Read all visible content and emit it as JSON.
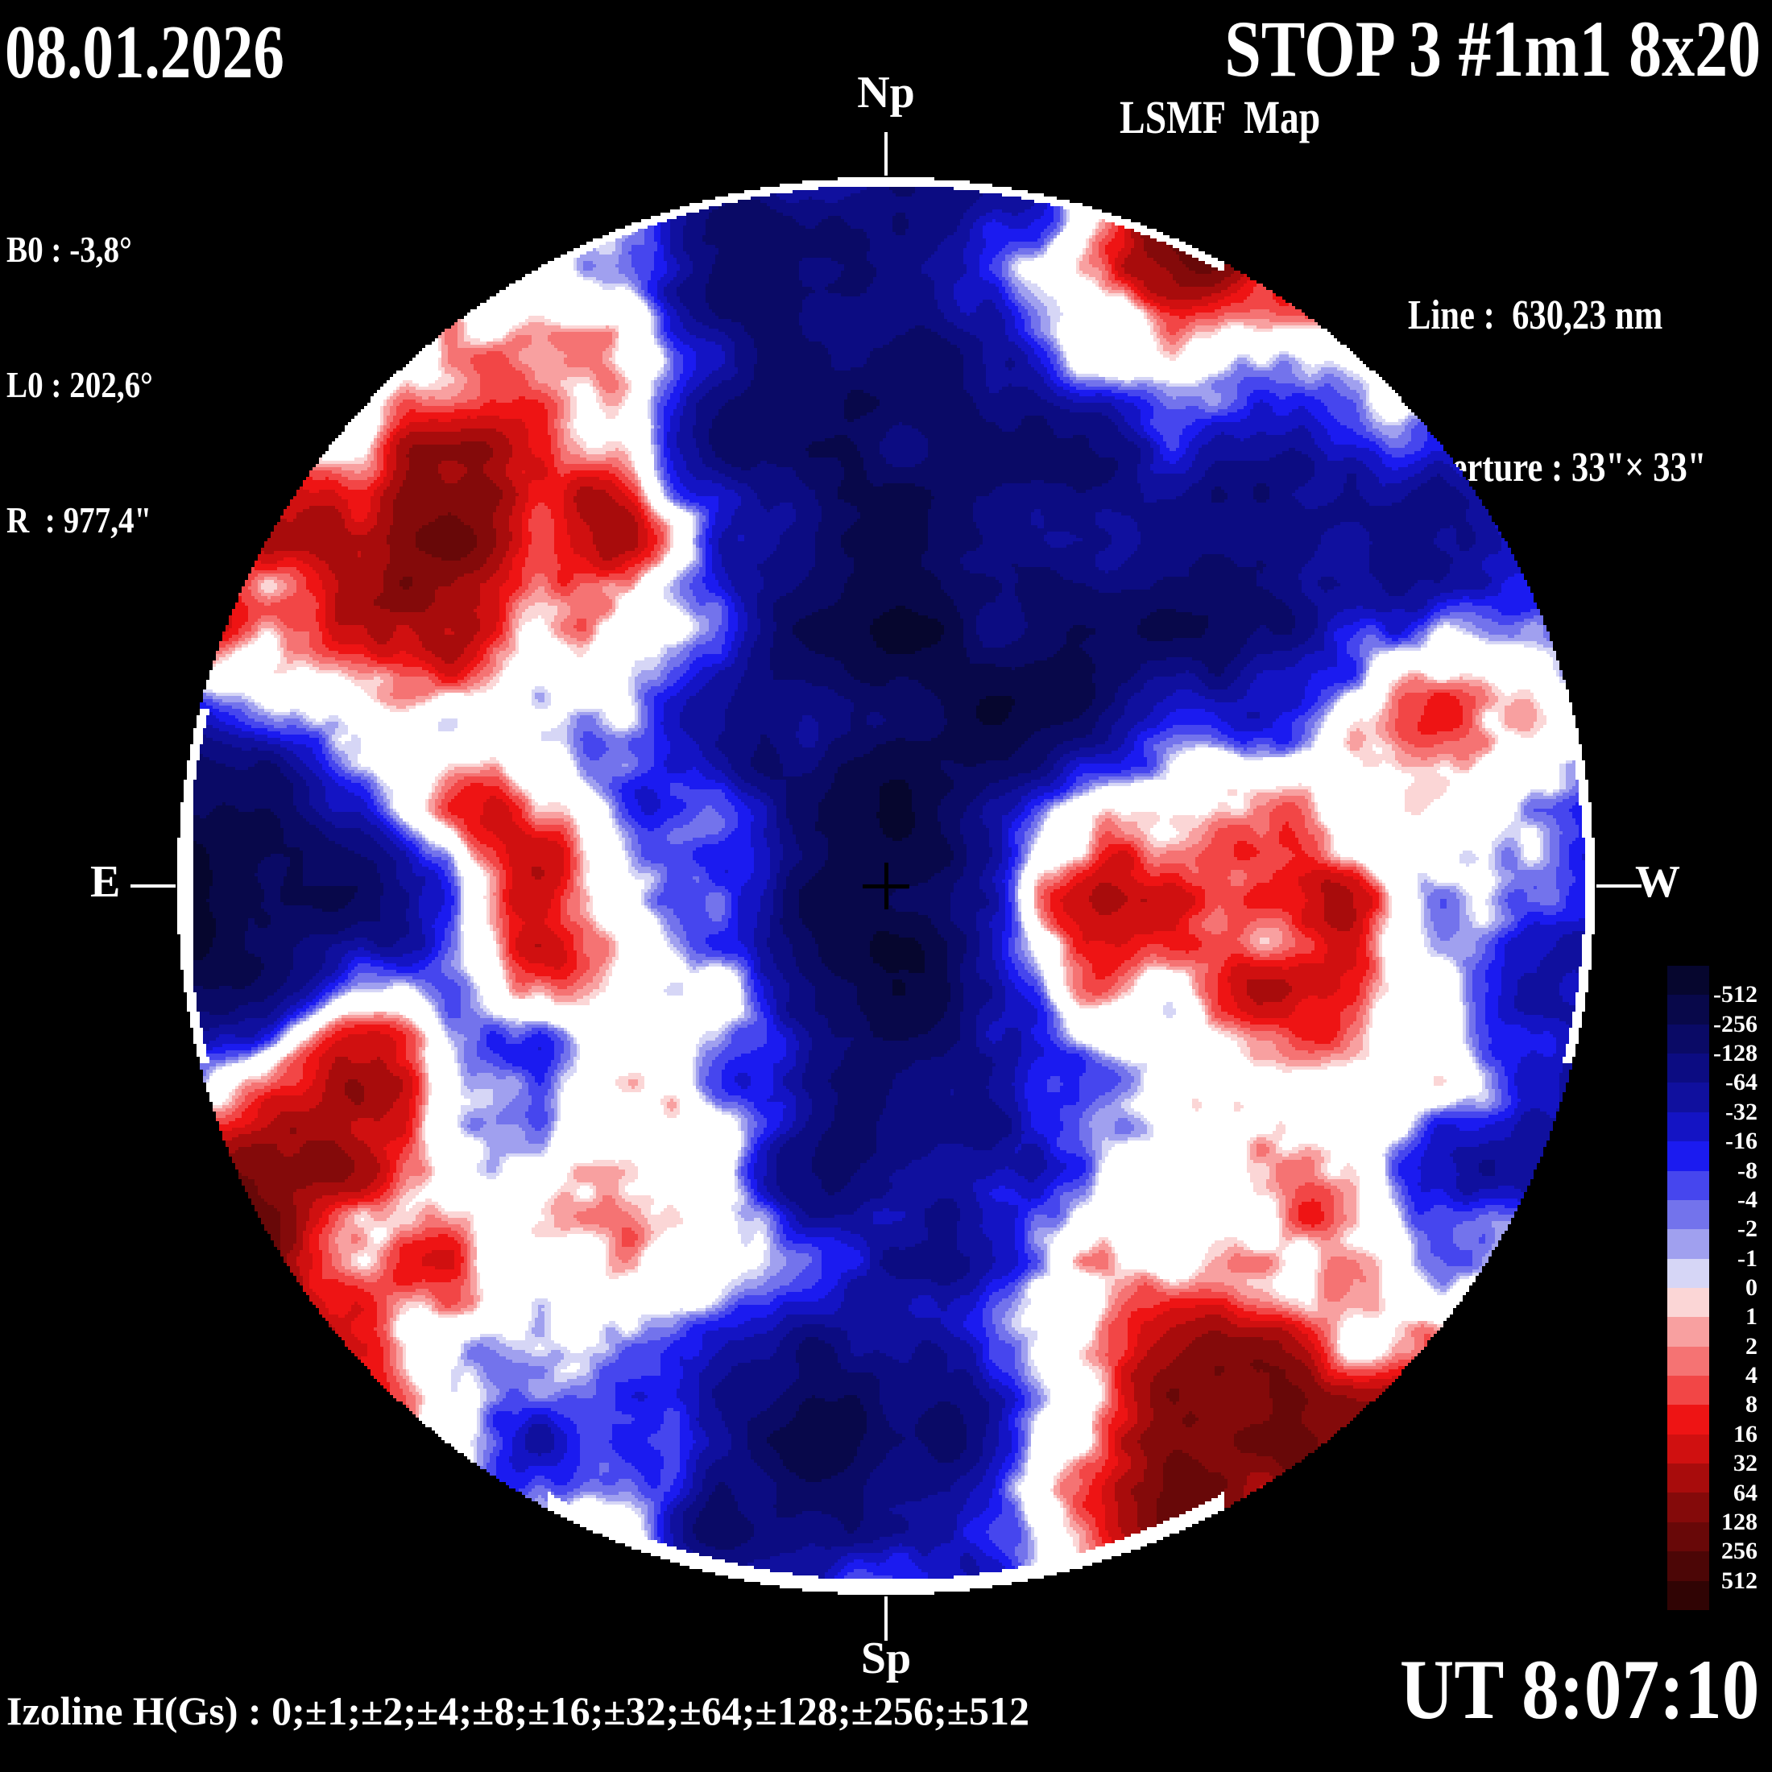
{
  "header": {
    "date": "08.01.2026",
    "title": "STOP 3 #1m1 8x20",
    "subtitle": "LSMF  Map",
    "params": [
      "B0 : -3,8°",
      "L0 : 202,6°",
      "R  : 977,4\""
    ],
    "line": "Line :  630,23 nm",
    "aperture": "Aperture : 33\"× 33\""
  },
  "orientation": {
    "north": "Np",
    "south": "Sp",
    "east": "E",
    "west": "W"
  },
  "footer": {
    "izoline": "Izoline H(Gs) : 0;±1;±2;±4;±8;±16;±32;±64;±128;±256;±512",
    "time": "UT 8:07:10"
  },
  "chart_data": {
    "type": "heatmap",
    "title": "LSMF  Map",
    "description": "Full-disk solar line-of-sight magnetic field contour map (filled isolines of H in Gauss); positive field red, negative field blue, zero isoline drawn white; black crosshair marks disk center",
    "isoline_levels_gauss": [
      0,
      1,
      2,
      4,
      8,
      16,
      32,
      64,
      128,
      256,
      512
    ],
    "colorbar_tick_labels": [
      "-512",
      "-256",
      "-128",
      "-64",
      "-32",
      "-16",
      "-8",
      "-4",
      "-2",
      "-1",
      "0",
      "1",
      "2",
      "4",
      "8",
      "16",
      "32",
      "64",
      "128",
      "256",
      "512"
    ],
    "palette_negative": [
      "#d6d6f6",
      "#a0a0ef",
      "#7373ec",
      "#4646ee",
      "#1b1bf0",
      "#1414c4",
      "#10109e",
      "#0c0c82",
      "#0a0a66",
      "#08084a",
      "#06062e"
    ],
    "palette_positive": [
      "#fbd6d6",
      "#f8a0a0",
      "#f57373",
      "#f24646",
      "#ee1414",
      "#d01010",
      "#a80c0c",
      "#840a0a",
      "#680808",
      "#4c0606",
      "#300404"
    ],
    "zero_isoline_color": "#ffffff",
    "background": "#000000",
    "disk_center_marker": "+",
    "legend_position": "right"
  }
}
